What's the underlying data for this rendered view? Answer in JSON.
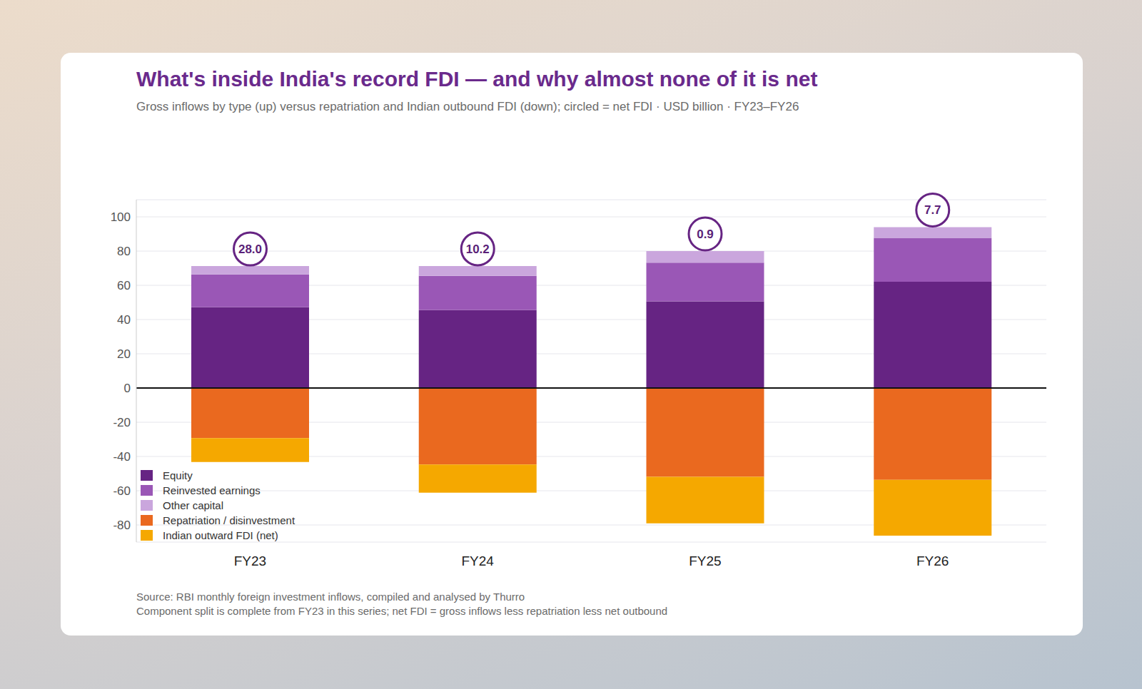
{
  "chart_data": {
    "type": "bar",
    "stacked": true,
    "title": "What's inside India's record FDI — and why almost none of it is net",
    "subtitle": "Gross inflows by type (up) versus repatriation and Indian outbound FDI (down); circled = net FDI · USD billion · FY23–FY26",
    "categories": [
      "FY23",
      "FY24",
      "FY25",
      "FY26"
    ],
    "series": [
      {
        "name": "Equity",
        "color": "#662483",
        "values": [
          47.2,
          45.5,
          50.6,
          62.1
        ]
      },
      {
        "name": "Reinvested earnings",
        "color": "#9a57b6",
        "values": [
          19.2,
          20.0,
          22.6,
          25.6
        ]
      },
      {
        "name": "Other capital",
        "color": "#caa6dd",
        "values": [
          4.8,
          5.8,
          6.8,
          6.3
        ]
      },
      {
        "name": "Repatriation / disinvestment",
        "color": "#ea691f",
        "values": [
          -29.3,
          -44.7,
          -51.9,
          -53.6
        ]
      },
      {
        "name": "Indian outward FDI (net)",
        "color": "#f5a800",
        "values": [
          -13.9,
          -16.4,
          -27.2,
          -32.7
        ]
      }
    ],
    "net_fdi": {
      "values": [
        28.0,
        10.2,
        0.9,
        7.7
      ],
      "value_labels": [
        "28.0",
        "10.2",
        "0.9",
        "7.7"
      ]
    },
    "ylim": [
      -90,
      110
    ],
    "yticks": [
      -80,
      -60,
      -40,
      -20,
      0,
      20,
      40,
      60,
      80,
      100
    ],
    "grid": true,
    "legend": "lower left",
    "source": "Source: RBI monthly foreign investment inflows, compiled and analysed by Thurro",
    "note": "Component split is complete from FY23 in this series; net FDI = gross inflows less repatriation less net outbound"
  }
}
